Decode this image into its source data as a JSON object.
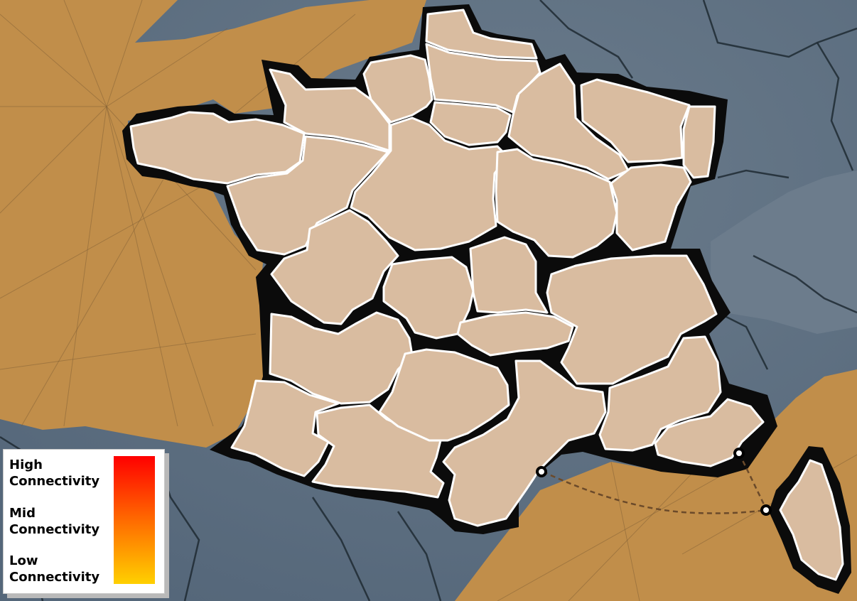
{
  "map": {
    "sea_color": "#5d6e7e",
    "land_color": "#c18e4a",
    "region_fill": "#d9bca0",
    "region_stroke": "#ffffff",
    "outline_color": "#0b0b0b"
  },
  "legend": {
    "high_label": "High\nConnectivity",
    "mid_label": "Mid\nConnectivity",
    "low_label": "Low\nConnectivity",
    "gradient_colors": [
      "#ff0000",
      "#ff6a00",
      "#ffd000"
    ]
  }
}
